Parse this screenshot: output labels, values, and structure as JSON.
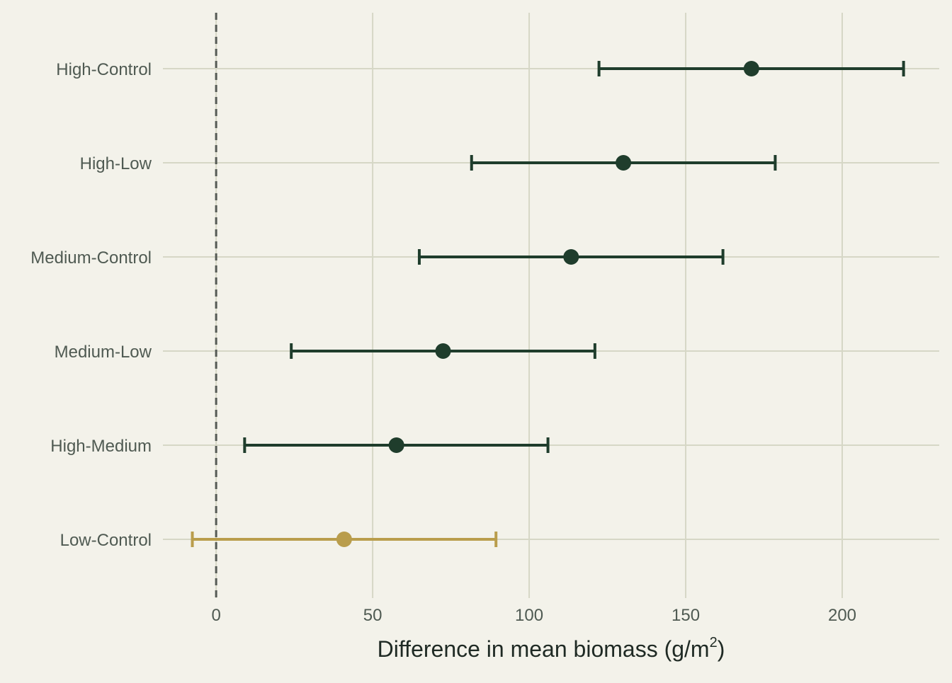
{
  "chart_data": {
    "type": "scatter",
    "subtype": "forest-plot-with-error-bars",
    "title": "",
    "xlabel": "Difference in mean biomass",
    "xlabel_unit": "g/m",
    "xlabel_unit_exponent": "2",
    "ylabel": "",
    "xlim": [
      -17,
      231
    ],
    "x_ticks": [
      0,
      50,
      100,
      150,
      200
    ],
    "x_tick_labels": [
      "0",
      "50",
      "100",
      "150",
      "200"
    ],
    "reference_line": {
      "x": 0,
      "style": "dashed",
      "color": "#555a55"
    },
    "grid": true,
    "legend": "none",
    "colors": {
      "background": "#f3f2ea",
      "grid": "#d6d7c6",
      "significant": "#1f3d2c",
      "not_significant": "#b99d4c",
      "label_text": "#4f5a52",
      "title_text": "#1f2a24"
    },
    "comparisons": [
      {
        "label": "High-Control",
        "estimate": 171.0,
        "lower": 122.3,
        "upper": 219.6,
        "significant": true
      },
      {
        "label": "High-Low",
        "estimate": 130.1,
        "lower": 81.6,
        "upper": 178.6,
        "significant": true
      },
      {
        "label": "Medium-Control",
        "estimate": 113.4,
        "lower": 64.9,
        "upper": 161.9,
        "significant": true
      },
      {
        "label": "Medium-Low",
        "estimate": 72.5,
        "lower": 24.0,
        "upper": 121.0,
        "significant": true
      },
      {
        "label": "High-Medium",
        "estimate": 57.6,
        "lower": 9.1,
        "upper": 106.0,
        "significant": true
      },
      {
        "label": "Low-Control",
        "estimate": 40.9,
        "lower": -7.6,
        "upper": 89.4,
        "significant": false
      }
    ]
  }
}
